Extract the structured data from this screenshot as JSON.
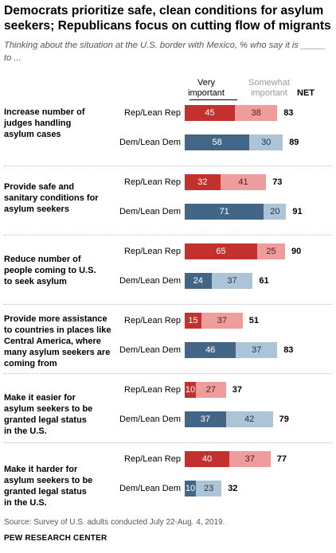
{
  "title": "Democrats prioritize safe, clean conditions for asylum seekers; Republicans focus on cutting flow of migrants",
  "subtitle": "Thinking about the situation at the U.S. border with Mexico, % who say it is _____ to ...",
  "source": "Source: Survey of U.S. adults conducted July 22-Aug. 4, 2019.",
  "credit": "PEW RESEARCH CENTER",
  "colors": {
    "rep_very": "#c3312e",
    "rep_somewhat": "#ee9d9c",
    "dem_very": "#446686",
    "dem_somewhat": "#adc4d7",
    "divider": "#bdbdbd"
  },
  "chart_data": {
    "type": "bar",
    "orientation": "horizontal",
    "stacked": true,
    "headers": {
      "very": "Very important",
      "somewhat": "Somewhat important",
      "net": "NET"
    },
    "series": [
      {
        "name": "Very important"
      },
      {
        "name": "Somewhat important"
      }
    ],
    "groups": [
      {
        "label": "Increase number of judges handling asylum cases",
        "rows": [
          {
            "party": "Rep/Lean Rep",
            "very": 45,
            "somewhat": 38,
            "net": 83
          },
          {
            "party": "Dem/Lean Dem",
            "very": 58,
            "somewhat": 30,
            "net": 89
          }
        ]
      },
      {
        "label": "Provide safe and sanitary conditions for asylum seekers",
        "rows": [
          {
            "party": "Rep/Lean Rep",
            "very": 32,
            "somewhat": 41,
            "net": 73
          },
          {
            "party": "Dem/Lean Dem",
            "very": 71,
            "somewhat": 20,
            "net": 91
          }
        ]
      },
      {
        "label": "Reduce number of people coming to U.S. to seek asylum",
        "rows": [
          {
            "party": "Rep/Lean Rep",
            "very": 65,
            "somewhat": 25,
            "net": 90
          },
          {
            "party": "Dem/Lean Dem",
            "very": 24,
            "somewhat": 37,
            "net": 61
          }
        ]
      },
      {
        "label": "Provide more assistance to countries in places like Central America, where many asylum seekers are coming from",
        "rows": [
          {
            "party": "Rep/Lean Rep",
            "very": 15,
            "somewhat": 37,
            "net": 51
          },
          {
            "party": "Dem/Lean Dem",
            "very": 46,
            "somewhat": 37,
            "net": 83
          }
        ]
      },
      {
        "label": "Make it easier for asylum seekers to be granted legal status in the U.S.",
        "rows": [
          {
            "party": "Rep/Lean Rep",
            "very": 10,
            "somewhat": 27,
            "net": 37
          },
          {
            "party": "Dem/Lean Dem",
            "very": 37,
            "somewhat": 42,
            "net": 79
          }
        ]
      },
      {
        "label": "Make it harder for asylum seekers to be granted legal status in the U.S.",
        "rows": [
          {
            "party": "Rep/Lean Rep",
            "very": 40,
            "somewhat": 37,
            "net": 77
          },
          {
            "party": "Dem/Lean Dem",
            "very": 10,
            "somewhat": 23,
            "net": 32
          }
        ]
      }
    ]
  }
}
